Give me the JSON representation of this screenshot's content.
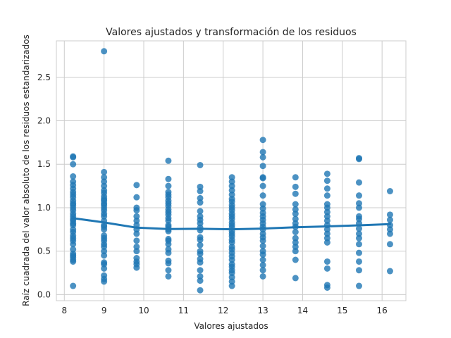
{
  "chart_data": {
    "type": "scatter",
    "title": "Valores ajustados y transformación de los residuos",
    "xlabel": "Valores ajustados",
    "ylabel": "Raíz cuadrada del valor absoluto de los residuos estandarizados",
    "xlim": [
      7.8,
      16.6
    ],
    "ylim": [
      -0.07,
      2.92
    ],
    "xticks": [
      8,
      9,
      10,
      11,
      12,
      13,
      14,
      15,
      16
    ],
    "yticks": [
      0.0,
      0.5,
      1.0,
      1.5,
      2.0,
      2.5
    ],
    "grid": true,
    "colors": {
      "points": "#1f77b4",
      "smooth": "#1f77b4",
      "grid": "#cccccc",
      "axes": "#cccccc"
    },
    "point_columns": [
      {
        "x": 8.22,
        "y": [
          0.1,
          0.38,
          0.4,
          0.43,
          0.45,
          0.47,
          0.52,
          0.58,
          0.62,
          0.65,
          0.68,
          0.72,
          0.75,
          0.8,
          0.82,
          0.85,
          0.87,
          0.9,
          0.93,
          0.97,
          1.0,
          1.03,
          1.05,
          1.08,
          1.12,
          1.15,
          1.18,
          1.22,
          1.26,
          1.3,
          1.36,
          1.5,
          1.58,
          1.59
        ]
      },
      {
        "x": 9.0,
        "y": [
          0.15,
          0.18,
          0.22,
          0.3,
          0.35,
          0.37,
          0.45,
          0.5,
          0.55,
          0.58,
          0.62,
          0.65,
          0.68,
          0.75,
          0.78,
          0.8,
          0.85,
          0.9,
          0.93,
          0.97,
          1.0,
          1.03,
          1.05,
          1.08,
          1.1,
          1.13,
          1.17,
          1.2,
          1.25,
          1.3,
          1.35,
          1.41,
          2.8
        ]
      },
      {
        "x": 9.82,
        "y": [
          0.31,
          0.35,
          0.38,
          0.42,
          0.5,
          0.55,
          0.62,
          0.7,
          0.75,
          0.8,
          0.85,
          0.9,
          0.97,
          1.0,
          1.12,
          1.26
        ]
      },
      {
        "x": 10.62,
        "y": [
          0.21,
          0.28,
          0.36,
          0.39,
          0.48,
          0.52,
          0.58,
          0.62,
          0.64,
          0.73,
          0.75,
          0.78,
          0.8,
          0.85,
          0.88,
          0.92,
          0.95,
          0.98,
          1.02,
          1.05,
          1.08,
          1.12,
          1.15,
          1.18,
          1.25,
          1.33,
          1.54
        ]
      },
      {
        "x": 11.42,
        "y": [
          0.05,
          0.16,
          0.21,
          0.28,
          0.37,
          0.41,
          0.47,
          0.5,
          0.57,
          0.63,
          0.66,
          0.74,
          0.77,
          0.82,
          0.86,
          0.9,
          0.96,
          1.06,
          1.11,
          1.19,
          1.24,
          1.49
        ]
      },
      {
        "x": 12.22,
        "y": [
          0.1,
          0.15,
          0.2,
          0.25,
          0.28,
          0.32,
          0.35,
          0.4,
          0.44,
          0.48,
          0.52,
          0.55,
          0.6,
          0.63,
          0.67,
          0.7,
          0.73,
          0.77,
          0.8,
          0.83,
          0.87,
          0.9,
          0.93,
          0.97,
          1.0,
          1.03,
          1.07,
          1.1,
          1.15,
          1.2,
          1.25,
          1.3,
          1.35
        ]
      },
      {
        "x": 13.0,
        "y": [
          0.21,
          0.28,
          0.34,
          0.4,
          0.46,
          0.5,
          0.56,
          0.62,
          0.66,
          0.7,
          0.75,
          0.78,
          0.82,
          0.86,
          0.9,
          0.94,
          0.99,
          1.04,
          1.14,
          1.25,
          1.34,
          1.35,
          1.48,
          1.58,
          1.64,
          1.78
        ]
      },
      {
        "x": 13.82,
        "y": [
          0.19,
          0.4,
          0.5,
          0.55,
          0.6,
          0.65,
          0.72,
          0.78,
          0.82,
          0.87,
          0.93,
          0.98,
          1.04,
          1.16,
          1.24,
          1.35
        ]
      },
      {
        "x": 14.62,
        "y": [
          0.08,
          0.11,
          0.3,
          0.38,
          0.6,
          0.65,
          0.7,
          0.75,
          0.8,
          0.85,
          0.9,
          0.95,
          1.0,
          1.04,
          1.14,
          1.22,
          1.31,
          1.39
        ]
      },
      {
        "x": 15.42,
        "y": [
          0.1,
          0.28,
          0.38,
          0.48,
          0.58,
          0.65,
          0.7,
          0.76,
          0.82,
          0.87,
          0.9,
          1.0,
          1.05,
          1.14,
          1.29,
          1.56,
          1.57
        ]
      },
      {
        "x": 16.2,
        "y": [
          0.27,
          0.58,
          0.7,
          0.75,
          0.8,
          0.86,
          0.92,
          1.19
        ]
      }
    ],
    "smooth_line": {
      "x": [
        8.22,
        9.0,
        9.82,
        10.62,
        11.42,
        12.22,
        13.0,
        13.82,
        14.62,
        15.42,
        16.2
      ],
      "y": [
        0.88,
        0.83,
        0.77,
        0.755,
        0.757,
        0.752,
        0.76,
        0.775,
        0.785,
        0.797,
        0.812
      ]
    }
  }
}
